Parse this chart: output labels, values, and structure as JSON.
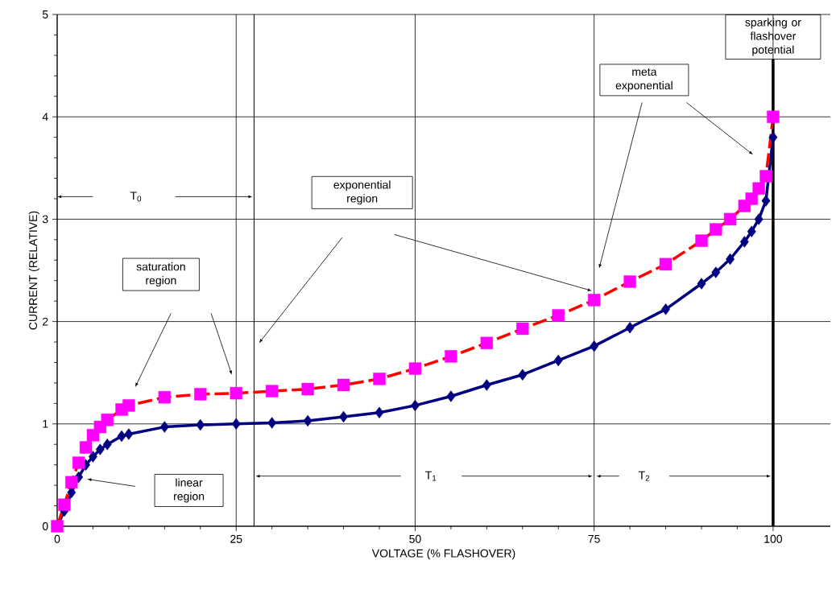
{
  "chart_data": {
    "type": "line",
    "xlabel": "VOLTAGE (% FLASHOVER)",
    "ylabel": "CURRENT (RELATIVE)",
    "xlim": [
      0,
      108
    ],
    "ylim": [
      0,
      5
    ],
    "xticks": [
      0,
      25,
      50,
      75,
      100
    ],
    "yticks": [
      0,
      1,
      2,
      3,
      4,
      5
    ],
    "grid": true,
    "series": [
      {
        "color": "#000080",
        "marker": "diamond",
        "line_style": "solid",
        "x": [
          0,
          1,
          2,
          3,
          4,
          5,
          6,
          7,
          9,
          10,
          15,
          20,
          25,
          30,
          35,
          40,
          45,
          50,
          55,
          60,
          65,
          70,
          75,
          80,
          85,
          90,
          92,
          94,
          96,
          97,
          98,
          99,
          100
        ],
        "values": [
          0,
          0.15,
          0.33,
          0.48,
          0.6,
          0.68,
          0.75,
          0.8,
          0.88,
          0.9,
          0.97,
          0.99,
          1.0,
          1.01,
          1.03,
          1.07,
          1.11,
          1.18,
          1.27,
          1.38,
          1.48,
          1.62,
          1.76,
          1.94,
          2.12,
          2.37,
          2.48,
          2.61,
          2.78,
          2.88,
          3.0,
          3.18,
          3.8
        ]
      },
      {
        "color": "#ff0000",
        "colors": [
          "#ff00ff",
          "#ff00ff",
          "#ff00ff",
          "#ff00ff",
          "#ff00ff",
          "#ff00ff",
          "#ff00ff",
          "#ff00ff",
          "#ff00ff",
          "#ff00ff",
          "#ff00ff",
          "#ff00ff",
          "#ff00ff",
          "#ff00ff",
          "#ff00ff",
          "#ff00ff",
          "#ff00ff",
          "#ff00ff",
          "#ff00ff",
          "#ff00ff",
          "#ff00ff",
          "#ff00ff",
          "#ff00ff",
          "#ff00ff",
          "#ff00ff",
          "#ff00ff",
          "#ff00ff",
          "#ff00ff",
          "#ff00ff",
          "#ff00ff",
          "#ff00ff",
          "#ff00ff",
          "#ff00ff"
        ],
        "marker": "square",
        "line_style": "dashed",
        "x": [
          0,
          1,
          2,
          3,
          4,
          5,
          6,
          7,
          9,
          10,
          15,
          20,
          25,
          30,
          35,
          40,
          45,
          50,
          55,
          60,
          65,
          70,
          75,
          80,
          85,
          90,
          92,
          94,
          96,
          97,
          98,
          99,
          100
        ],
        "values": [
          0,
          0.21,
          0.43,
          0.62,
          0.77,
          0.89,
          0.97,
          1.04,
          1.14,
          1.18,
          1.26,
          1.29,
          1.3,
          1.32,
          1.34,
          1.38,
          1.44,
          1.54,
          1.66,
          1.79,
          1.93,
          2.06,
          2.21,
          2.39,
          2.56,
          2.79,
          2.9,
          3.0,
          3.13,
          3.2,
          3.3,
          3.42,
          4.0
        ]
      }
    ],
    "ref_lines": [
      {
        "axis": "x",
        "value": 100,
        "label": "sparking or flashover potential",
        "color": "#000000",
        "line_style": "solid"
      },
      {
        "axis": "x",
        "value": 27.5,
        "color": "#000000",
        "line_style": "solid"
      }
    ],
    "annotations": [
      "saturation region",
      "exponential region",
      "meta exponential",
      "linear region",
      "T$_{0}$",
      "T$_{1}$",
      "T$_{2}$"
    ]
  }
}
